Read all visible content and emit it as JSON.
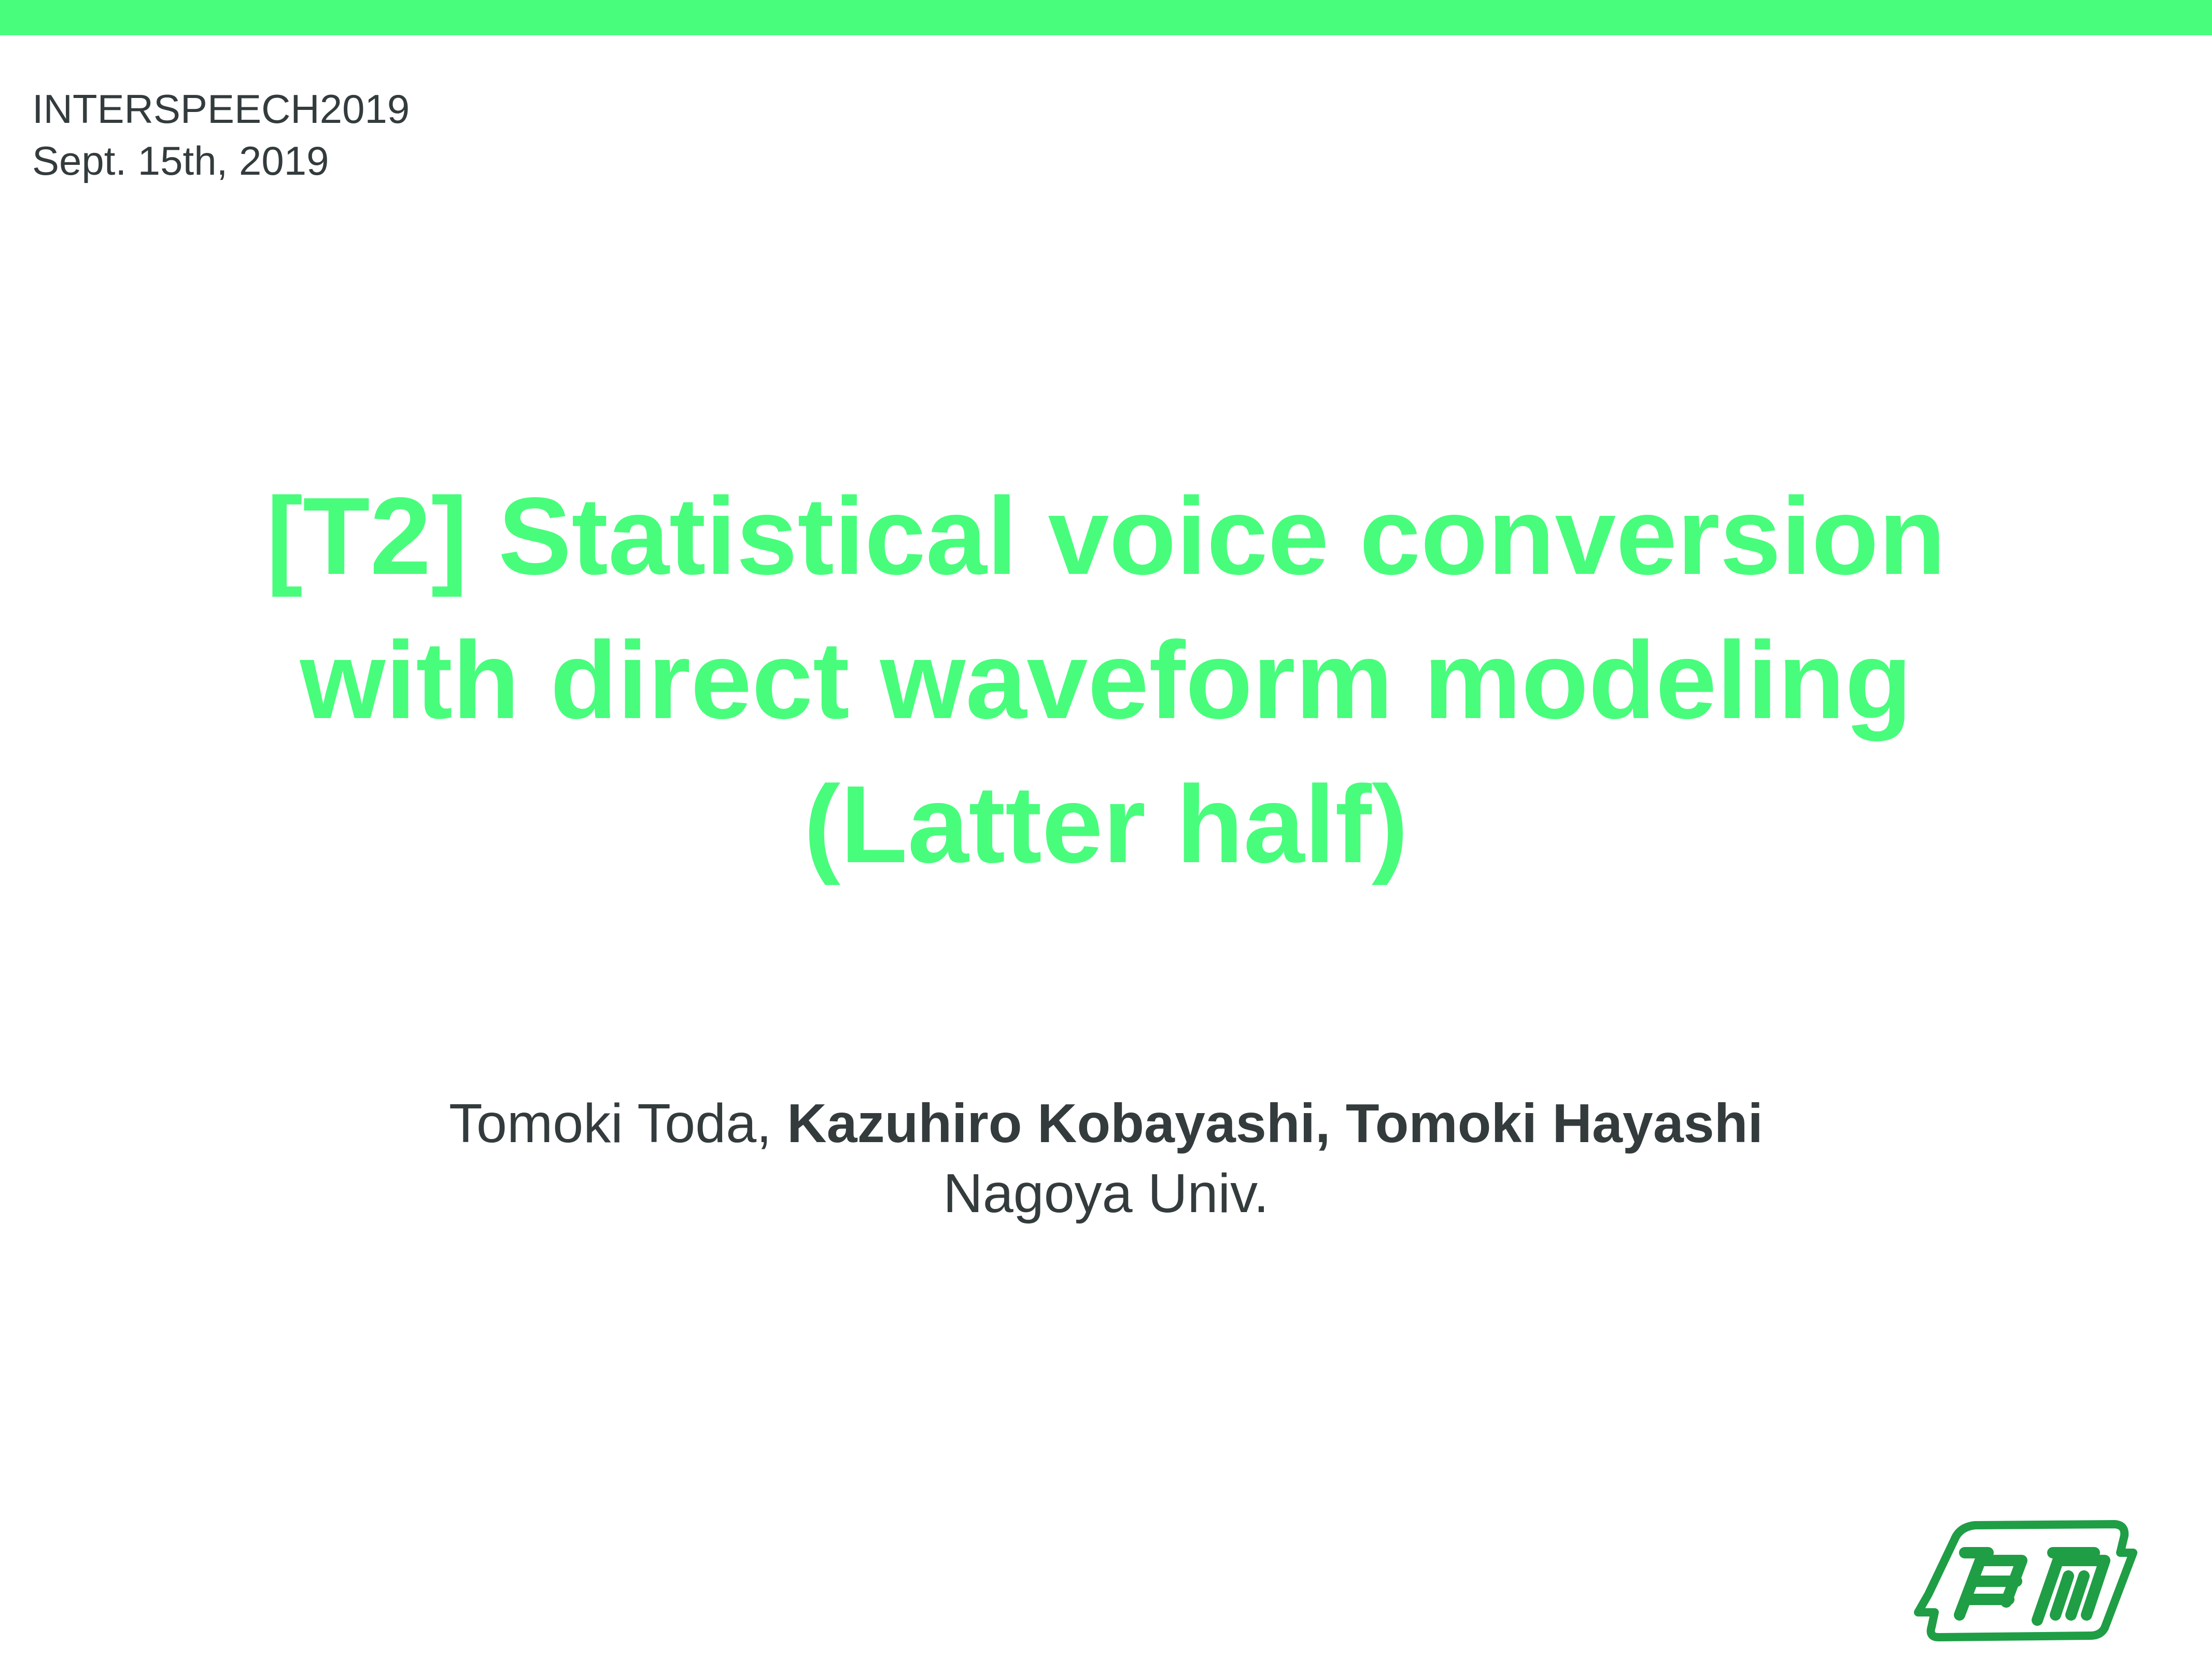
{
  "header": {
    "event": "INTERSPEECH2019",
    "date": "Sept. 15th, 2019"
  },
  "title": {
    "line1": "[T2] Statistical voice conversion",
    "line2": "with direct waveform modeling",
    "line3": "(Latter half)"
  },
  "authors": {
    "normal": "Tomoki Toda, ",
    "bold": "Kazuhiro Kobayashi, Tomoki Hayashi",
    "affiliation": "Nagoya Univ."
  },
  "logo": {
    "icon": "nagoya-university-emblem",
    "color": "#1f9e45"
  },
  "colors": {
    "accent": "#48fd7c",
    "text": "#333b3d"
  }
}
